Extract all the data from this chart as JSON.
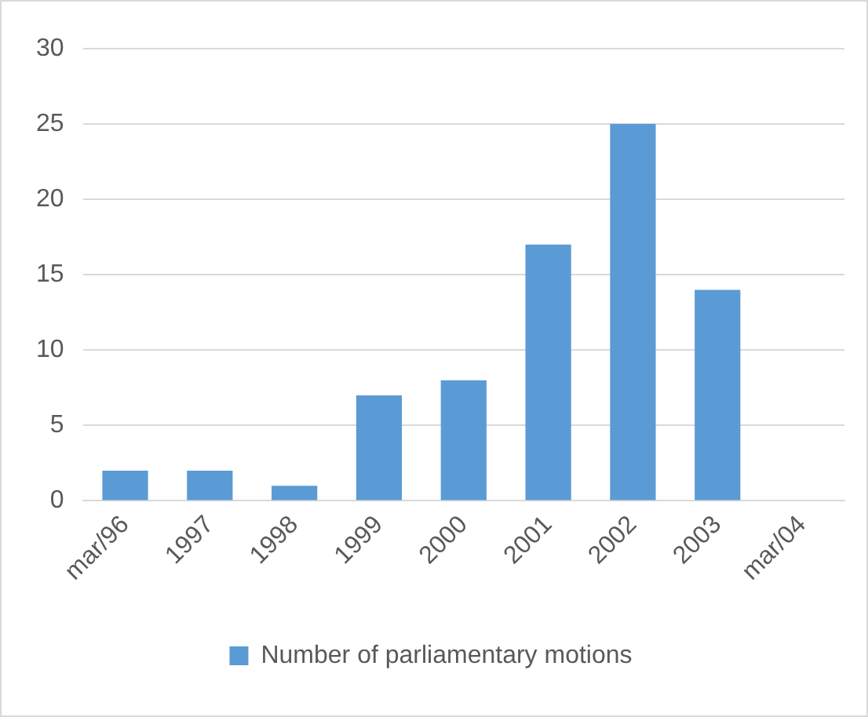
{
  "chart_data": {
    "type": "bar",
    "categories": [
      "mar/96",
      "1997",
      "1998",
      "1999",
      "2000",
      "2001",
      "2002",
      "2003",
      "mar/04"
    ],
    "series": [
      {
        "name": "Number of parliamentary motions",
        "color": "#5b9bd5",
        "values": [
          2,
          2,
          1,
          7,
          8,
          17,
          25,
          14,
          null
        ]
      }
    ],
    "ylim": [
      0,
      30
    ],
    "yticks": [
      0,
      5,
      10,
      15,
      20,
      25,
      30
    ],
    "grid": "y",
    "legend": "bottom"
  }
}
